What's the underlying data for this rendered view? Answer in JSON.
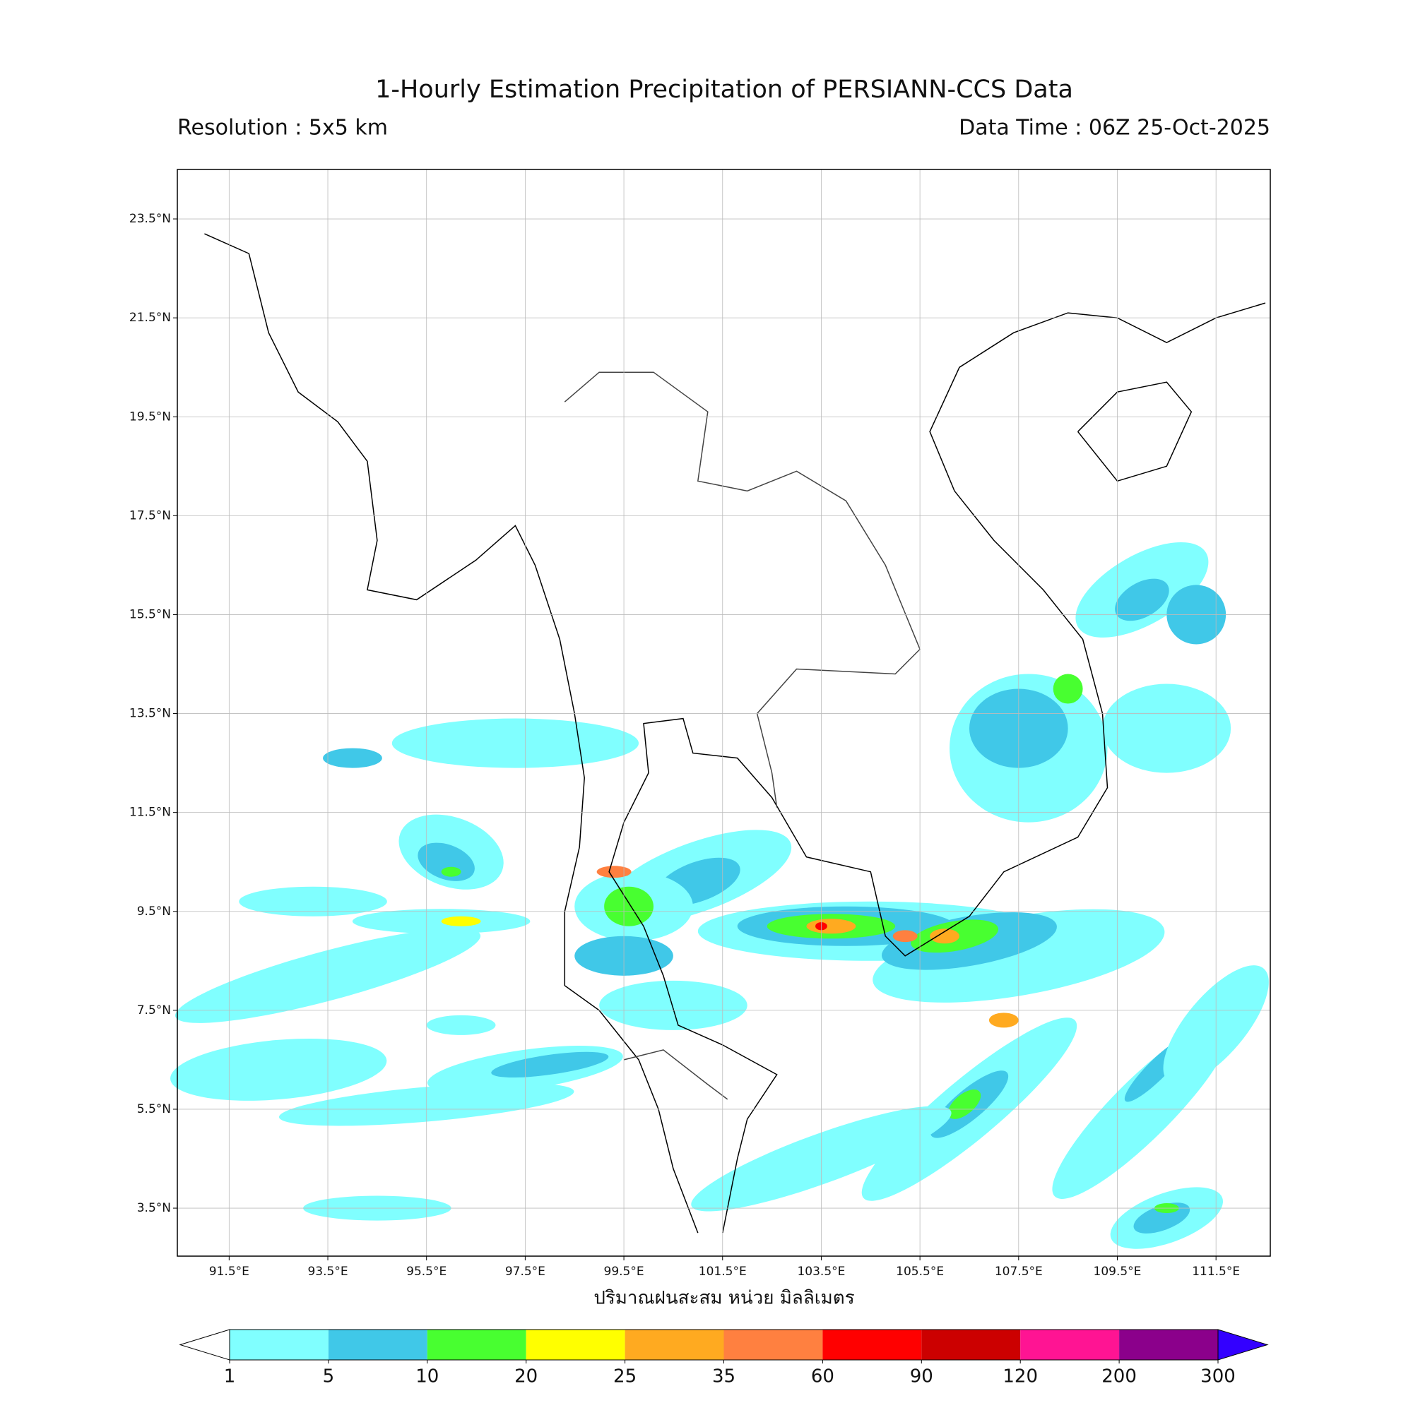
{
  "header": {
    "title": "1-Hourly Estimation Precipitation of PERSIANN-CCS Data",
    "resolution": "Resolution : 5x5 km",
    "data_time": "Data Time : 06Z 25-Oct-2025"
  },
  "map": {
    "xlim": [
      90.45,
      112.6
    ],
    "ylim": [
      2.53,
      24.5
    ],
    "xticks": [
      {
        "value": 91.5,
        "label": "91.5°E"
      },
      {
        "value": 93.5,
        "label": "93.5°E"
      },
      {
        "value": 95.5,
        "label": "95.5°E"
      },
      {
        "value": 97.5,
        "label": "97.5°E"
      },
      {
        "value": 99.5,
        "label": "99.5°E"
      },
      {
        "value": 101.5,
        "label": "101.5°E"
      },
      {
        "value": 103.5,
        "label": "103.5°E"
      },
      {
        "value": 105.5,
        "label": "105.5°E"
      },
      {
        "value": 107.5,
        "label": "107.5°E"
      },
      {
        "value": 109.5,
        "label": "109.5°E"
      },
      {
        "value": 111.5,
        "label": "111.5°E"
      }
    ],
    "yticks": [
      {
        "value": 3.5,
        "label": "3.5°N"
      },
      {
        "value": 5.5,
        "label": "5.5°N"
      },
      {
        "value": 7.5,
        "label": "7.5°N"
      },
      {
        "value": 9.5,
        "label": "9.5°N"
      },
      {
        "value": 11.5,
        "label": "11.5°N"
      },
      {
        "value": 13.5,
        "label": "13.5°N"
      },
      {
        "value": 15.5,
        "label": "15.5°N"
      },
      {
        "value": 17.5,
        "label": "17.5°N"
      },
      {
        "value": 19.5,
        "label": "19.5°N"
      },
      {
        "value": 21.5,
        "label": "21.5°N"
      },
      {
        "value": 23.5,
        "label": "23.5°N"
      }
    ],
    "grid": true,
    "xlabel": "ปริมาณฝนสะสม หน่วย มิลลิเมตร"
  },
  "colorbar": {
    "boundaries": [
      1,
      5,
      10,
      20,
      25,
      35,
      60,
      90,
      120,
      200,
      300
    ],
    "colors": [
      "#80ffff",
      "#40c8e8",
      "#48ff30",
      "#ffff00",
      "#ffaa20",
      "#ff8040",
      "#ff0000",
      "#cc0000",
      "#ff1493",
      "#8b008b"
    ],
    "under_color": "#ffffff",
    "over_color": "#3300ff"
  }
}
